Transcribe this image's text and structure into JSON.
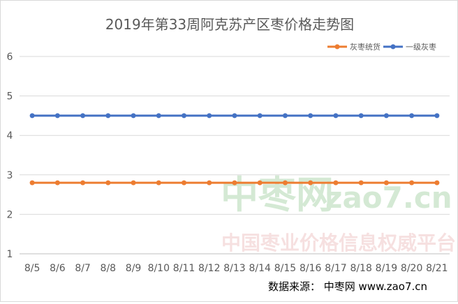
{
  "chart_data": {
    "type": "line",
    "title": "2019年第33周阿克苏产区枣价格走势图",
    "categories": [
      "8/5",
      "8/6",
      "8/7",
      "8/8",
      "8/9",
      "8/10",
      "8/11",
      "8/12",
      "8/13",
      "8/14",
      "8/15",
      "8/16",
      "8/17",
      "8/18",
      "8/19",
      "8/20",
      "8/21"
    ],
    "series": [
      {
        "name": "灰枣统货",
        "color": "#ed7d31",
        "values": [
          2.8,
          2.8,
          2.8,
          2.8,
          2.8,
          2.8,
          2.8,
          2.8,
          2.8,
          2.8,
          2.8,
          2.8,
          2.8,
          2.8,
          2.8,
          2.8,
          2.8
        ]
      },
      {
        "name": "一级灰枣",
        "color": "#4472c4",
        "values": [
          4.5,
          4.5,
          4.5,
          4.5,
          4.5,
          4.5,
          4.5,
          4.5,
          4.5,
          4.5,
          4.5,
          4.5,
          4.5,
          4.5,
          4.5,
          4.5,
          4.5
        ]
      }
    ],
    "ylim": [
      1,
      6
    ],
    "yticks": [
      1,
      2,
      3,
      4,
      5,
      6
    ],
    "grid": true,
    "legend_position": "top-right"
  },
  "watermark": {
    "logo_text": "中枣网",
    "site": "zao7.cn",
    "slogan": "中国枣业价格信息权威平台"
  },
  "source_note": "数据来源：  中枣网 www.zao7.cn"
}
